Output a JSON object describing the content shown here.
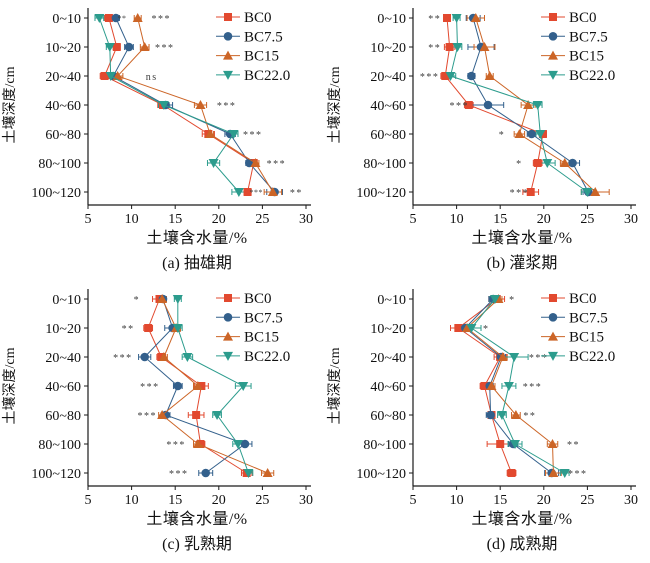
{
  "figure": {
    "ylabel": "土壤深度/cm",
    "xlabel": "土壤含水量/%",
    "depths": [
      "0~10",
      "10~20",
      "20~40",
      "40~60",
      "60~80",
      "80~100",
      "100~120"
    ],
    "x_ticks": [
      5,
      10,
      15,
      20,
      25,
      30
    ],
    "x_min": 5,
    "x_max": 30,
    "grid": "off",
    "legend_position": "top-right-inside",
    "colors": {
      "axis": "#1a1a1a",
      "sig_text": "#3f3f3f"
    },
    "series_meta": [
      {
        "name": "BC0",
        "color": "#E2492F",
        "marker": "square"
      },
      {
        "name": "BC7.5",
        "color": "#33608C",
        "marker": "circle"
      },
      {
        "name": "BC15",
        "color": "#CC6527",
        "marker": "triangle-up"
      },
      {
        "name": "BC22.0",
        "color": "#2C9C8D",
        "marker": "triangle-down"
      }
    ]
  },
  "chart_data": [
    {
      "id": "a",
      "type": "line",
      "caption": "(a) 抽雄期",
      "xlabel": "土壤含水量/%",
      "ylabel": "土壤深度/cm",
      "categories": [
        "0~10",
        "10~20",
        "20~40",
        "40~60",
        "60~80",
        "80~100",
        "100~120"
      ],
      "xlim": [
        5,
        30
      ],
      "series": [
        {
          "name": "BC0",
          "values": [
            7.4,
            8.3,
            6.9,
            13.6,
            18.8,
            24.0,
            23.3
          ],
          "xerr": [
            0.5,
            0.4,
            0.5,
            0.6,
            0.7,
            0.4,
            0.4
          ]
        },
        {
          "name": "BC7.5",
          "values": [
            8.2,
            9.7,
            7.9,
            13.9,
            21.3,
            23.5,
            26.4
          ],
          "xerr": [
            0.4,
            0.5,
            0.4,
            0.8,
            0.6,
            0.4,
            0.9
          ]
        },
        {
          "name": "BC15",
          "values": [
            10.7,
            11.5,
            8.4,
            17.9,
            19.0,
            24.2,
            26.2
          ],
          "xerr": [
            0.4,
            0.5,
            0.6,
            0.7,
            0.4,
            0.4,
            1.0
          ]
        },
        {
          "name": "BC22.0",
          "values": [
            6.3,
            7.5,
            7.6,
            13.7,
            21.7,
            19.4,
            22.3
          ],
          "xerr": [
            0.5,
            0.4,
            0.4,
            0.6,
            0.5,
            0.7,
            0.8
          ]
        }
      ],
      "significance": [
        {
          "row": 0,
          "label": "***",
          "x": 13.4
        },
        {
          "row": 1,
          "label": "***",
          "x": 13.8
        },
        {
          "row": 2,
          "label": "ns",
          "x": 12.3
        },
        {
          "row": 3,
          "label": "***",
          "x": 20.9
        },
        {
          "row": 4,
          "label": "***",
          "x": 23.9
        },
        {
          "row": 5,
          "label": "***",
          "x": 26.6
        },
        {
          "row": 6,
          "label": "**",
          "x": 28.9
        }
      ],
      "extra_annotations": [
        {
          "row": 0,
          "label": "**",
          "x": 8.9
        },
        {
          "row": 6,
          "label": "***",
          "x": 24.3
        }
      ],
      "show_legend": true
    },
    {
      "id": "b",
      "type": "line",
      "caption": "(b) 灌浆期",
      "xlabel": "土壤含水量/%",
      "ylabel": "土壤深度/cm",
      "categories": [
        "0~10",
        "10~20",
        "20~40",
        "40~60",
        "60~80",
        "80~100",
        "100~120"
      ],
      "xlim": [
        5,
        30
      ],
      "series": [
        {
          "name": "BC0",
          "values": [
            8.9,
            9.2,
            8.7,
            11.4,
            19.9,
            19.3,
            18.5
          ],
          "xerr": [
            0.4,
            0.6,
            0.5,
            0.5,
            0.4,
            0.5,
            0.9
          ]
        },
        {
          "name": "BC7.5",
          "values": [
            11.9,
            12.8,
            11.7,
            13.6,
            18.6,
            23.3,
            25.1
          ],
          "xerr": [
            0.8,
            1.5,
            0.4,
            1.8,
            0.5,
            0.8,
            0.6
          ]
        },
        {
          "name": "BC15",
          "values": [
            12.2,
            13.2,
            13.8,
            18.2,
            17.2,
            22.4,
            25.9
          ],
          "xerr": [
            1.0,
            1.2,
            0.4,
            0.8,
            0.6,
            0.5,
            1.6
          ]
        },
        {
          "name": "BC22.0",
          "values": [
            10.0,
            10.1,
            9.3,
            19.3,
            19.6,
            20.4,
            25.0
          ],
          "xerr": [
            0.4,
            0.5,
            0.6,
            0.5,
            0.5,
            0.9,
            0.7
          ]
        }
      ],
      "significance": [
        {
          "row": 0,
          "label": "**",
          "x": 7.5
        },
        {
          "row": 1,
          "label": "**",
          "x": 7.5
        },
        {
          "row": 2,
          "label": "***",
          "x": 6.9
        },
        {
          "row": 3,
          "label": "***",
          "x": 10.3
        },
        {
          "row": 4,
          "label": "*",
          "x": 15.2
        },
        {
          "row": 5,
          "label": "*",
          "x": 17.2
        },
        {
          "row": 6,
          "label": "***",
          "x": 17.2
        }
      ],
      "extra_annotations": [],
      "show_legend": true
    },
    {
      "id": "c",
      "type": "line",
      "caption": "(c) 乳熟期",
      "xlabel": "土壤含水量/%",
      "ylabel": "土壤深度/cm",
      "categories": [
        "0~10",
        "10~20",
        "20~40",
        "40~60",
        "60~80",
        "80~100",
        "100~120"
      ],
      "xlim": [
        5,
        30
      ],
      "series": [
        {
          "name": "BC0",
          "values": [
            13.2,
            11.9,
            13.4,
            18.0,
            17.4,
            17.9,
            23.2
          ],
          "xerr": [
            0.8,
            0.5,
            0.5,
            0.8,
            0.9,
            0.5,
            0.6
          ]
        },
        {
          "name": "BC7.5",
          "values": [
            13.6,
            14.7,
            11.5,
            15.3,
            13.9,
            23.0,
            18.5
          ],
          "xerr": [
            0.4,
            0.9,
            0.7,
            0.5,
            0.5,
            0.8,
            0.8
          ]
        },
        {
          "name": "BC15",
          "values": [
            13.5,
            15.1,
            13.7,
            17.6,
            13.5,
            17.6,
            25.6
          ],
          "xerr": [
            0.5,
            0.5,
            0.4,
            0.5,
            0.4,
            0.5,
            0.7
          ]
        },
        {
          "name": "BC22.0",
          "values": [
            15.3,
            15.3,
            16.4,
            22.8,
            19.8,
            22.2,
            23.4
          ],
          "xerr": [
            0.4,
            0.5,
            0.6,
            0.9,
            0.5,
            0.6,
            0.5
          ]
        }
      ],
      "significance": [
        {
          "row": 0,
          "label": "*",
          "x": 10.6
        },
        {
          "row": 1,
          "label": "**",
          "x": 9.6
        },
        {
          "row": 2,
          "label": "***",
          "x": 9.0
        },
        {
          "row": 3,
          "label": "***",
          "x": 12.1
        },
        {
          "row": 4,
          "label": "***",
          "x": 11.8
        },
        {
          "row": 5,
          "label": "***",
          "x": 15.1
        },
        {
          "row": 6,
          "label": "***",
          "x": 15.4
        }
      ],
      "extra_annotations": [],
      "show_legend": true
    },
    {
      "id": "d",
      "type": "line",
      "caption": "(d) 成熟期",
      "xlabel": "土壤含水量/%",
      "ylabel": "土壤深度/cm",
      "categories": [
        "0~10",
        "10~20",
        "20~40",
        "40~60",
        "60~80",
        "80~100",
        "100~120"
      ],
      "xlim": [
        5,
        30
      ],
      "series": [
        {
          "name": "BC0",
          "values": [
            14.6,
            10.2,
            15.0,
            13.2,
            14.0,
            15.0,
            16.3
          ],
          "xerr": [
            0.9,
            0.9,
            0.7,
            0.5,
            0.4,
            1.5,
            0.5
          ]
        },
        {
          "name": "BC7.5",
          "values": [
            14.2,
            11.0,
            15.1,
            13.8,
            13.9,
            16.5,
            20.9
          ],
          "xerr": [
            0.5,
            0.5,
            0.5,
            0.4,
            0.5,
            0.5,
            0.8
          ]
        },
        {
          "name": "BC15",
          "values": [
            14.8,
            11.2,
            15.3,
            14.0,
            16.8,
            21.0,
            21.1
          ],
          "xerr": [
            0.4,
            0.5,
            0.5,
            0.4,
            0.5,
            0.6,
            0.9
          ]
        },
        {
          "name": "BC22.0",
          "values": [
            14.4,
            11.7,
            16.6,
            16.0,
            15.2,
            16.7,
            22.4
          ],
          "xerr": [
            0.6,
            1.1,
            1.6,
            0.8,
            0.5,
            0.8,
            0.5
          ]
        }
      ],
      "significance": [
        {
          "row": 0,
          "label": "*",
          "x": 16.4
        },
        {
          "row": 1,
          "label": "*",
          "x": 13.4
        },
        {
          "row": 2,
          "label": "***",
          "x": 19.4
        },
        {
          "row": 3,
          "label": "***",
          "x": 18.7
        },
        {
          "row": 4,
          "label": "**",
          "x": 18.4
        },
        {
          "row": 5,
          "label": "**",
          "x": 23.4
        },
        {
          "row": 6,
          "label": "***",
          "x": 23.9
        }
      ],
      "extra_annotations": [],
      "show_legend": true
    }
  ]
}
